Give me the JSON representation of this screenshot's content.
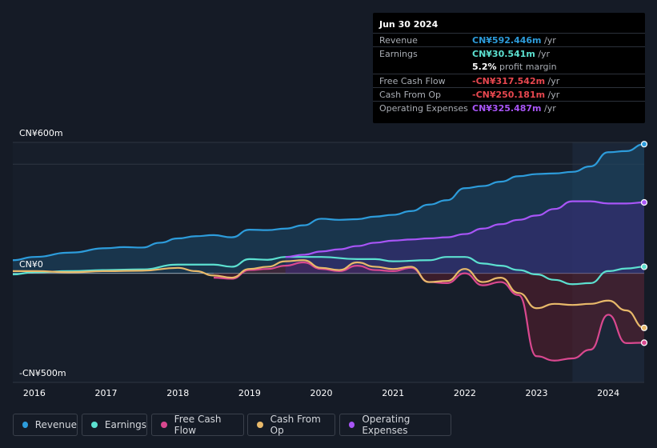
{
  "tooltip": {
    "date": "Jun 30 2024",
    "rows": [
      {
        "label": "Revenue",
        "value": "CN¥592.446m",
        "unit": " /yr",
        "color": "#2d9cdb"
      },
      {
        "label": "Earnings",
        "value": "CN¥30.541m",
        "unit": " /yr",
        "color": "#5ce0d0"
      },
      {
        "label": "",
        "value": "5.2%",
        "unit": " profit margin",
        "color": "#ffffff"
      },
      {
        "label": "Free Cash Flow",
        "value": "-CN¥317.542m",
        "unit": " /yr",
        "color": "#e8474f"
      },
      {
        "label": "Cash From Op",
        "value": "-CN¥250.181m",
        "unit": " /yr",
        "color": "#e8474f"
      },
      {
        "label": "Operating Expenses",
        "value": "CN¥325.487m",
        "unit": " /yr",
        "color": "#a855f7"
      }
    ]
  },
  "y_axis": {
    "top": "CN¥600m",
    "zero": "CN¥0",
    "bottom": "-CN¥500m"
  },
  "chart_data": {
    "type": "line",
    "title": "",
    "xlabel": "",
    "ylabel": "",
    "x_ticks": [
      "2016",
      "2017",
      "2018",
      "2019",
      "2020",
      "2021",
      "2022",
      "2023",
      "2024"
    ],
    "xlim": [
      2015.7,
      2024.5
    ],
    "ylim": [
      -500,
      600
    ],
    "forecast_start": 2023.5,
    "series": [
      {
        "name": "Revenue",
        "color": "#2d9cdb",
        "fill": "#1c4868",
        "x": [
          2015.7,
          2016,
          2016.5,
          2017,
          2017.25,
          2017.5,
          2017.75,
          2018,
          2018.25,
          2018.5,
          2018.75,
          2019,
          2019.25,
          2019.5,
          2019.75,
          2020,
          2020.25,
          2020.5,
          2020.75,
          2021,
          2021.25,
          2021.5,
          2021.75,
          2022,
          2022.25,
          2022.5,
          2022.75,
          2023,
          2023.25,
          2023.5,
          2023.75,
          2024,
          2024.25,
          2024.5
        ],
        "y": [
          60,
          75,
          95,
          115,
          120,
          118,
          140,
          160,
          170,
          175,
          165,
          200,
          198,
          205,
          220,
          250,
          245,
          248,
          260,
          268,
          285,
          315,
          335,
          390,
          400,
          420,
          445,
          455,
          458,
          465,
          490,
          555,
          560,
          592
        ]
      },
      {
        "name": "Earnings",
        "color": "#5ce0d0",
        "x": [
          2015.7,
          2016,
          2016.5,
          2017,
          2017.5,
          2018,
          2018.5,
          2018.75,
          2019,
          2019.25,
          2019.5,
          2020,
          2020.5,
          2020.75,
          2021,
          2021.5,
          2021.75,
          2022,
          2022.25,
          2022.5,
          2022.75,
          2023,
          2023.25,
          2023.5,
          2023.75,
          2024,
          2024.25,
          2024.5
        ],
        "y": [
          -5,
          5,
          10,
          15,
          18,
          40,
          40,
          30,
          65,
          62,
          75,
          75,
          65,
          65,
          55,
          60,
          75,
          75,
          45,
          35,
          15,
          -5,
          -30,
          -50,
          -45,
          10,
          22,
          30
        ]
      },
      {
        "name": "Free Cash Flow",
        "color": "#d9488f",
        "fill": "#5a1e2c",
        "x": [
          2018.5,
          2018.75,
          2019,
          2019.25,
          2019.5,
          2019.75,
          2020,
          2020.25,
          2020.5,
          2020.75,
          2021,
          2021.25,
          2021.5,
          2021.75,
          2022,
          2022.25,
          2022.5,
          2022.75,
          2023,
          2023.25,
          2023.5,
          2023.75,
          2024,
          2024.25,
          2024.5
        ],
        "y": [
          -20,
          -25,
          15,
          20,
          35,
          50,
          20,
          10,
          35,
          15,
          10,
          25,
          -40,
          -45,
          0,
          -55,
          -40,
          -100,
          -380,
          -400,
          -390,
          -350,
          -190,
          -320,
          -318
        ]
      },
      {
        "name": "Cash From Op",
        "color": "#e8b96a",
        "x": [
          2015.7,
          2016,
          2016.5,
          2017,
          2017.5,
          2018,
          2018.25,
          2018.5,
          2018.75,
          2019,
          2019.25,
          2019.5,
          2019.75,
          2020,
          2020.25,
          2020.5,
          2020.75,
          2021,
          2021.25,
          2021.5,
          2021.75,
          2022,
          2022.25,
          2022.5,
          2022.75,
          2023,
          2023.25,
          2023.5,
          2023.75,
          2024,
          2024.25,
          2024.5
        ],
        "y": [
          10,
          10,
          5,
          10,
          12,
          25,
          10,
          -10,
          -20,
          20,
          30,
          55,
          60,
          25,
          15,
          50,
          30,
          20,
          30,
          -40,
          -35,
          20,
          -40,
          -20,
          -90,
          -160,
          -140,
          -145,
          -140,
          -125,
          -170,
          -250
        ]
      },
      {
        "name": "Operating Expenses",
        "color": "#a855f7",
        "fill": "#3a2a7a",
        "x": [
          2019.5,
          2019.75,
          2020,
          2020.25,
          2020.5,
          2020.75,
          2021,
          2021.25,
          2021.5,
          2021.75,
          2022,
          2022.25,
          2022.5,
          2022.75,
          2023,
          2023.25,
          2023.5,
          2023.75,
          2024,
          2024.25,
          2024.5
        ],
        "y": [
          75,
          85,
          100,
          110,
          125,
          140,
          150,
          155,
          160,
          165,
          180,
          205,
          225,
          245,
          265,
          295,
          330,
          330,
          320,
          320,
          325
        ]
      }
    ]
  },
  "legend": [
    {
      "label": "Revenue",
      "color": "#2d9cdb"
    },
    {
      "label": "Earnings",
      "color": "#5ce0d0"
    },
    {
      "label": "Free Cash Flow",
      "color": "#d9488f"
    },
    {
      "label": "Cash From Op",
      "color": "#e8b96a"
    },
    {
      "label": "Operating Expenses",
      "color": "#a855f7"
    }
  ]
}
